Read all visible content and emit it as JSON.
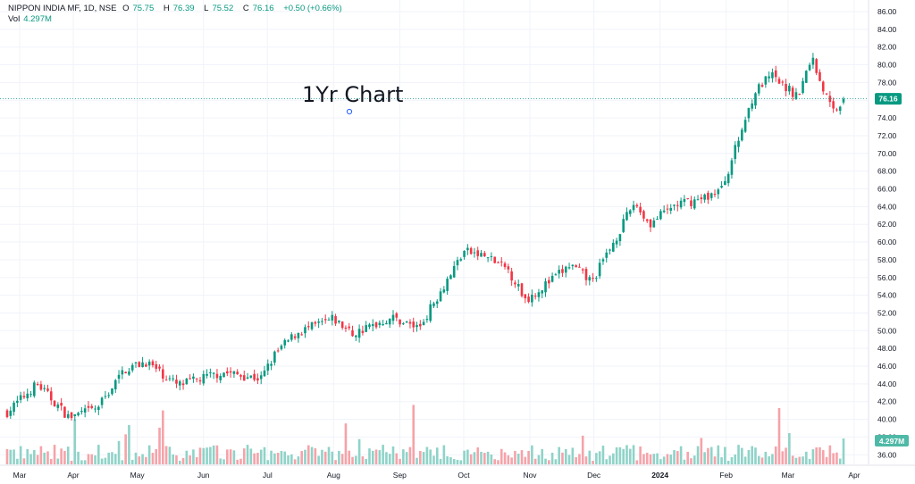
{
  "header": {
    "symbol": "NIPPON INDIA MF, 1D, NSE",
    "open_label": "O",
    "open": "75.75",
    "high_label": "H",
    "high": "76.39",
    "low_label": "L",
    "low": "75.52",
    "close_label": "C",
    "close": "76.16",
    "change": "+0.50 (+0.66%)",
    "vol_label": "Vol",
    "vol_value": "4.297M"
  },
  "annotation": "1Yr Chart",
  "colors": {
    "up": "#089981",
    "down": "#f23645",
    "vol_up": "#8fd3c8",
    "vol_down": "#f5a3a9",
    "grid": "#f0f3fa"
  },
  "chart_data": {
    "type": "candlestick",
    "title": "",
    "y_ticks": [
      "86.00",
      "84.00",
      "82.00",
      "80.00",
      "78.00",
      "76.00",
      "74.00",
      "72.00",
      "70.00",
      "68.00",
      "66.00",
      "64.00",
      "62.00",
      "60.00",
      "58.00",
      "56.00",
      "54.00",
      "52.00",
      "50.00",
      "48.00",
      "46.00",
      "44.00",
      "42.00",
      "40.00",
      "38.00",
      "36.00"
    ],
    "ylim": [
      35,
      87
    ],
    "x_ticks": [
      "Mar",
      "Apr",
      "May",
      "Jun",
      "Jul",
      "Aug",
      "Sep",
      "Oct",
      "Nov",
      "Dec",
      "2024",
      "Feb",
      "Mar",
      "Apr"
    ],
    "last_price_label": "76.16",
    "last_volume_label": "4.297M",
    "price_keypoints": [
      {
        "date": "2023-03-01",
        "close": 40.8
      },
      {
        "date": "2023-03-15",
        "close": 44.0
      },
      {
        "date": "2023-03-30",
        "close": 40.2
      },
      {
        "date": "2023-04-12",
        "close": 41.2
      },
      {
        "date": "2023-04-25",
        "close": 45.6
      },
      {
        "date": "2023-05-05",
        "close": 46.5
      },
      {
        "date": "2023-05-20",
        "close": 43.8
      },
      {
        "date": "2023-06-10",
        "close": 45.3
      },
      {
        "date": "2023-06-28",
        "close": 44.6
      },
      {
        "date": "2023-07-05",
        "close": 47.5
      },
      {
        "date": "2023-07-15",
        "close": 49.8
      },
      {
        "date": "2023-08-01",
        "close": 51.3
      },
      {
        "date": "2023-08-10",
        "close": 49.6
      },
      {
        "date": "2023-08-28",
        "close": 51.5
      },
      {
        "date": "2023-09-10",
        "close": 50.3
      },
      {
        "date": "2023-09-25",
        "close": 56.5
      },
      {
        "date": "2023-10-01",
        "close": 59.0
      },
      {
        "date": "2023-10-12",
        "close": 58.3
      },
      {
        "date": "2023-10-22",
        "close": 56.8
      },
      {
        "date": "2023-10-30",
        "close": 53.5
      },
      {
        "date": "2023-11-10",
        "close": 55.5
      },
      {
        "date": "2023-11-20",
        "close": 57.4
      },
      {
        "date": "2023-11-30",
        "close": 55.5
      },
      {
        "date": "2023-12-12",
        "close": 60.8
      },
      {
        "date": "2023-12-20",
        "close": 64.5
      },
      {
        "date": "2023-12-27",
        "close": 62.0
      },
      {
        "date": "2024-01-08",
        "close": 64.2
      },
      {
        "date": "2024-01-20",
        "close": 64.8
      },
      {
        "date": "2024-01-30",
        "close": 66.0
      },
      {
        "date": "2024-02-06",
        "close": 71.0
      },
      {
        "date": "2024-02-14",
        "close": 76.8
      },
      {
        "date": "2024-02-22",
        "close": 78.8
      },
      {
        "date": "2024-02-28",
        "close": 77.5
      },
      {
        "date": "2024-03-06",
        "close": 76.5
      },
      {
        "date": "2024-03-12",
        "close": 81.0
      },
      {
        "date": "2024-03-17",
        "close": 77.5
      },
      {
        "date": "2024-03-22",
        "close": 74.8
      },
      {
        "date": "2024-03-27",
        "close": 76.16
      }
    ]
  }
}
